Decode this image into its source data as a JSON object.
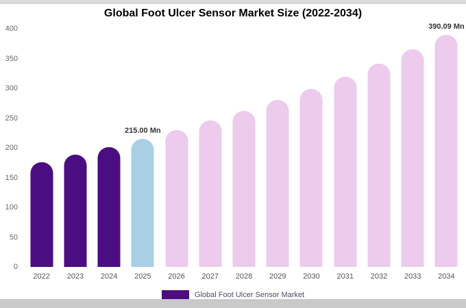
{
  "title": "Global Foot Ulcer Sensor Market Size (2022-2034)",
  "legend": {
    "label": "Global Foot Ulcer Sensor Market",
    "swatch_color": "#4a0d82"
  },
  "chart_data": {
    "type": "bar",
    "title": "Global Foot Ulcer Sensor Market Size (2022-2034)",
    "categories": [
      "2022",
      "2023",
      "2024",
      "2025",
      "2026",
      "2027",
      "2028",
      "2029",
      "2030",
      "2031",
      "2032",
      "2033",
      "2034"
    ],
    "values": [
      176,
      188,
      201,
      215,
      229.7,
      245.5,
      262.3,
      280.2,
      299.4,
      319.9,
      341.8,
      365.2,
      390.09
    ],
    "unit": "Mn",
    "xlabel": "",
    "ylabel": "",
    "ylim": [
      0,
      400
    ],
    "ytick_step": 50,
    "grid": false,
    "legend_position": "bottom",
    "palette": {
      "historical": "#4a0d82",
      "highlight": "#a9cfe5",
      "forecast": "#eccbed"
    },
    "bar_roles": [
      "historical",
      "historical",
      "historical",
      "highlight",
      "forecast",
      "forecast",
      "forecast",
      "forecast",
      "forecast",
      "forecast",
      "forecast",
      "forecast",
      "forecast"
    ],
    "data_labels": [
      {
        "index": 3,
        "text": "215.00 Mn"
      },
      {
        "index": 12,
        "text": "390.09 Mn"
      }
    ]
  }
}
